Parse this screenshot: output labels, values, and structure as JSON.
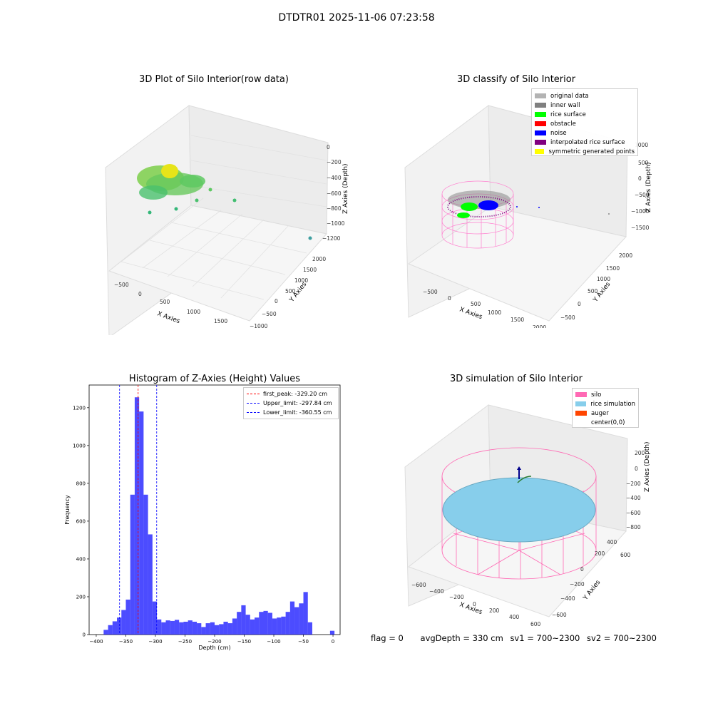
{
  "figure_title": "DTDTR01 2025-11-06 07:23:58",
  "panels": {
    "raw": {
      "title": "3D Plot of Silo Interior(row data)",
      "xlabel": "X Axies",
      "ylabel": "Y Axies",
      "zlabel": "Z Axies (Depth)",
      "xticks": [
        "−500",
        "0",
        "500",
        "1000",
        "1500"
      ],
      "yticks": [
        "−1000",
        "−500",
        "0",
        "500",
        "1000",
        "1500",
        "2000"
      ],
      "zticks": [
        "0",
        "−200",
        "−400",
        "−600",
        "−800",
        "−1000",
        "−1200"
      ]
    },
    "classify": {
      "title": "3D classify of Silo Interior",
      "xlabel": "X Axies",
      "ylabel": "Y Axies",
      "zlabel": "Z Axies (Depth)",
      "xticks": [
        "−500",
        "0",
        "500",
        "1000",
        "1500",
        "2000"
      ],
      "yticks": [
        "−500",
        "0",
        "500",
        "1000",
        "1500",
        "2000"
      ],
      "zticks": [
        "1000",
        "500",
        "0",
        "−500",
        "−1000",
        "−1500"
      ],
      "legend": [
        {
          "label": "original data",
          "color": "#b3b3b3"
        },
        {
          "label": "inner wall",
          "color": "#808080"
        },
        {
          "label": "rice surface",
          "color": "#00ff00"
        },
        {
          "label": "obstacle",
          "color": "#ff0000"
        },
        {
          "label": "noise",
          "color": "#0000ff"
        },
        {
          "label": "interpolated rice surface",
          "color": "#800080"
        },
        {
          "label": "symmetric generated points",
          "color": "#ffff00"
        }
      ]
    },
    "simulation": {
      "title": "3D simulation of Silo Interior",
      "xlabel": "X Axies",
      "ylabel": "Y Axies",
      "zlabel": "Z Axies (Depth)",
      "xticks": [
        "−600",
        "−400",
        "−200",
        "0",
        "200",
        "400",
        "600"
      ],
      "yticks": [
        "−600",
        "−400",
        "−200",
        "0",
        "200",
        "400",
        "600"
      ],
      "zticks": [
        "200",
        "0",
        "−200",
        "−400",
        "−600",
        "−800"
      ],
      "legend": [
        {
          "label": "silo",
          "color": "#ff69b4"
        },
        {
          "label": "rice simulation",
          "color": "#87ceeb"
        },
        {
          "label": "auger",
          "color": "#ff4500"
        },
        {
          "label": "center(0,0)",
          "color": ""
        }
      ]
    }
  },
  "footer": {
    "flag": "flag = 0",
    "avg_depth": "avgDepth = 330 cm",
    "sv1": "sv1 = 700~2300",
    "sv2": "sv2 = 700~2300"
  },
  "chart_data": [
    {
      "type": "bar",
      "title": "Histogram of Z-Axies (Height) Values",
      "xlabel": "Depth (cm)",
      "ylabel": "Frequency",
      "xlim": [
        -412,
        12
      ],
      "ylim": [
        0,
        1320
      ],
      "xticks": [
        -400,
        -350,
        -300,
        -250,
        -200,
        -150,
        -100,
        -50,
        0
      ],
      "yticks": [
        0,
        200,
        400,
        600,
        800,
        1000,
        1200
      ],
      "bar_color": "#0000ff",
      "bins": [
        {
          "x0": -387.5,
          "x1": -380,
          "value": 25
        },
        {
          "x0": -380,
          "x1": -372.5,
          "value": 50
        },
        {
          "x0": -372.5,
          "x1": -365,
          "value": 70
        },
        {
          "x0": -365,
          "x1": -357.5,
          "value": 90
        },
        {
          "x0": -357.5,
          "x1": -350,
          "value": 130
        },
        {
          "x0": -350,
          "x1": -342.5,
          "value": 185
        },
        {
          "x0": -342.5,
          "x1": -335,
          "value": 740
        },
        {
          "x0": -335,
          "x1": -327.5,
          "value": 1255
        },
        {
          "x0": -327.5,
          "x1": -320,
          "value": 1180
        },
        {
          "x0": -320,
          "x1": -312.5,
          "value": 740
        },
        {
          "x0": -312.5,
          "x1": -305,
          "value": 530
        },
        {
          "x0": -305,
          "x1": -297.5,
          "value": 175
        },
        {
          "x0": -297.5,
          "x1": -290,
          "value": 80
        },
        {
          "x0": -290,
          "x1": -282.5,
          "value": 65
        },
        {
          "x0": -282.5,
          "x1": -275,
          "value": 75
        },
        {
          "x0": -275,
          "x1": -267.5,
          "value": 72
        },
        {
          "x0": -267.5,
          "x1": -260,
          "value": 78
        },
        {
          "x0": -260,
          "x1": -252.5,
          "value": 65
        },
        {
          "x0": -252.5,
          "x1": -245,
          "value": 68
        },
        {
          "x0": -245,
          "x1": -237.5,
          "value": 75
        },
        {
          "x0": -237.5,
          "x1": -230,
          "value": 68
        },
        {
          "x0": -230,
          "x1": -222.5,
          "value": 60
        },
        {
          "x0": -222.5,
          "x1": -215,
          "value": 40
        },
        {
          "x0": -215,
          "x1": -207.5,
          "value": 60
        },
        {
          "x0": -207.5,
          "x1": -200,
          "value": 65
        },
        {
          "x0": -200,
          "x1": -192.5,
          "value": 50
        },
        {
          "x0": -192.5,
          "x1": -185,
          "value": 55
        },
        {
          "x0": -185,
          "x1": -177.5,
          "value": 68
        },
        {
          "x0": -177.5,
          "x1": -170,
          "value": 60
        },
        {
          "x0": -170,
          "x1": -162.5,
          "value": 85
        },
        {
          "x0": -162.5,
          "x1": -155,
          "value": 120
        },
        {
          "x0": -155,
          "x1": -147.5,
          "value": 155
        },
        {
          "x0": -147.5,
          "x1": -140,
          "value": 105
        },
        {
          "x0": -140,
          "x1": -132.5,
          "value": 80
        },
        {
          "x0": -132.5,
          "x1": -125,
          "value": 90
        },
        {
          "x0": -125,
          "x1": -117.5,
          "value": 120
        },
        {
          "x0": -117.5,
          "x1": -110,
          "value": 125
        },
        {
          "x0": -110,
          "x1": -102.5,
          "value": 115
        },
        {
          "x0": -102.5,
          "x1": -95,
          "value": 85
        },
        {
          "x0": -95,
          "x1": -87.5,
          "value": 90
        },
        {
          "x0": -87.5,
          "x1": -80,
          "value": 95
        },
        {
          "x0": -80,
          "x1": -72.5,
          "value": 120
        },
        {
          "x0": -72.5,
          "x1": -65,
          "value": 175
        },
        {
          "x0": -65,
          "x1": -57.5,
          "value": 145
        },
        {
          "x0": -57.5,
          "x1": -50,
          "value": 165
        },
        {
          "x0": -50,
          "x1": -42.5,
          "value": 225
        },
        {
          "x0": -42.5,
          "x1": -35,
          "value": 65
        },
        {
          "x0": -20,
          "x1": -12.5,
          "value": 0
        },
        {
          "x0": -12.5,
          "x1": -5,
          "value": 0
        },
        {
          "x0": -5,
          "x1": 2.5,
          "value": 20
        }
      ],
      "lines": [
        {
          "label": "first_peak: -329.20 cm",
          "x": -329.2,
          "color": "#ff0000"
        },
        {
          "label": "Upper_limit: -297.84 cm",
          "x": -297.84,
          "color": "#0000ff"
        },
        {
          "label": "Lower_limit: -360.55 cm",
          "x": -360.55,
          "color": "#0000ff"
        }
      ]
    }
  ]
}
